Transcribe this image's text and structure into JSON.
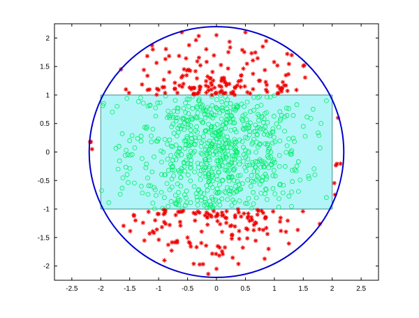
{
  "chart_data": {
    "type": "scatter",
    "title": "",
    "xlabel": "",
    "ylabel": "",
    "xlim": [
      -2.8,
      2.8
    ],
    "ylim": [
      -2.25,
      2.25
    ],
    "grid": false,
    "xticks": [
      -2.5,
      -2,
      -1.5,
      -1,
      -0.5,
      0,
      0.5,
      1,
      1.5,
      2,
      2.5
    ],
    "yticks": [
      -2,
      -1.5,
      -1,
      -0.5,
      0,
      0.5,
      1,
      1.5,
      2
    ],
    "xtick_labels": [
      "-2.5",
      "-2",
      "-1.5",
      "-1",
      "-0.5",
      "0",
      "0.5",
      "1",
      "1.5",
      "2",
      "2.5"
    ],
    "ytick_labels": [
      "-2",
      "-1.5",
      "-1",
      "-0.5",
      "0",
      "0.5",
      "1",
      "1.5",
      "2"
    ],
    "circle": {
      "center": [
        0,
        0
      ],
      "radius": 2.2,
      "color": "#0000cc"
    },
    "rectangle": {
      "x": [
        -2,
        2
      ],
      "y": [
        -1,
        1
      ],
      "fill": "#b2f5f8",
      "edge": "#3a8f8f"
    },
    "series": [
      {
        "marker": "o",
        "color": "#00ee66",
        "count": 707,
        "description_of_region": "points inside rectangle |x|<=2, |y|<=1",
        "sample_points": [
          [
            -1.95,
            0.85
          ],
          [
            -1.8,
            0.7
          ],
          [
            -1.7,
            -0.3
          ],
          [
            -1.5,
            0.2
          ],
          [
            -1.3,
            -0.6
          ],
          [
            -1.1,
            0.4
          ],
          [
            -0.9,
            -0.8
          ],
          [
            -0.7,
            0.6
          ],
          [
            -0.5,
            -0.2
          ],
          [
            -0.3,
            0.9
          ],
          [
            -0.1,
            0.1
          ],
          [
            0.1,
            -0.5
          ],
          [
            0.3,
            0.75
          ],
          [
            0.5,
            -0.9
          ],
          [
            0.7,
            0.3
          ],
          [
            0.9,
            -0.1
          ],
          [
            1.1,
            0.55
          ],
          [
            1.3,
            -0.7
          ],
          [
            1.5,
            0.45
          ],
          [
            1.7,
            -0.4
          ],
          [
            1.9,
            0.9
          ],
          [
            1.9,
            -0.8
          ]
        ]
      },
      {
        "marker": "*",
        "color": "#ee0000",
        "count": 293,
        "description_of_region": "points inside circle but outside rectangle",
        "sample_points": [
          [
            -0.6,
            2.1
          ],
          [
            0.0,
            2.05
          ],
          [
            0.5,
            2.1
          ],
          [
            0.8,
            1.85
          ],
          [
            1.3,
            1.7
          ],
          [
            -1.1,
            1.8
          ],
          [
            -1.65,
            1.45
          ],
          [
            2.1,
            0.6
          ],
          [
            -2.15,
            0.05
          ],
          [
            2.05,
            -0.75
          ],
          [
            1.2,
            -1.4
          ],
          [
            0.0,
            -2.05
          ],
          [
            -0.5,
            -1.5
          ],
          [
            -1.4,
            -1.2
          ],
          [
            0.9,
            -1.7
          ],
          [
            -0.9,
            -1.9
          ]
        ]
      }
    ]
  }
}
